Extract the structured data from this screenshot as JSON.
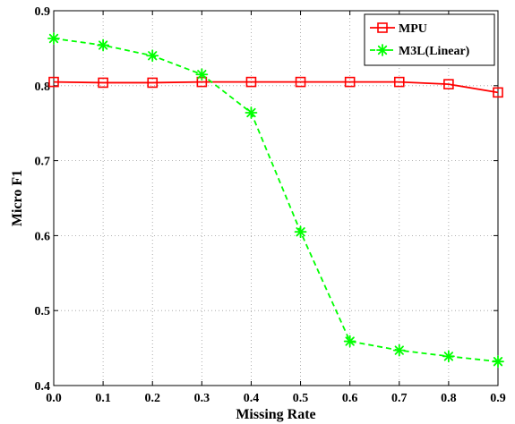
{
  "chart_data": {
    "type": "line",
    "xlabel": "Missing Rate",
    "ylabel": "Micro F1",
    "xlim": [
      0.0,
      0.9
    ],
    "ylim": [
      0.4,
      0.9
    ],
    "x_ticks": [
      "0.0",
      "0.1",
      "0.2",
      "0.3",
      "0.4",
      "0.5",
      "0.6",
      "0.7",
      "0.8",
      "0.9"
    ],
    "y_ticks": [
      "0.4",
      "0.5",
      "0.6",
      "0.7",
      "0.8",
      "0.9"
    ],
    "grid": true,
    "legend_position": "top-right",
    "x": [
      0.0,
      0.1,
      0.2,
      0.3,
      0.4,
      0.5,
      0.6,
      0.7,
      0.8,
      0.9
    ],
    "series": [
      {
        "name": "MPU",
        "color": "#ff0000",
        "marker": "square",
        "line_style": "solid",
        "values": [
          0.805,
          0.804,
          0.804,
          0.805,
          0.805,
          0.805,
          0.805,
          0.805,
          0.802,
          0.791
        ]
      },
      {
        "name": "M3L(Linear)",
        "color": "#00ff00",
        "marker": "asterisk",
        "line_style": "dashed",
        "values": [
          0.863,
          0.854,
          0.84,
          0.815,
          0.764,
          0.605,
          0.459,
          0.447,
          0.439,
          0.432
        ]
      }
    ]
  }
}
